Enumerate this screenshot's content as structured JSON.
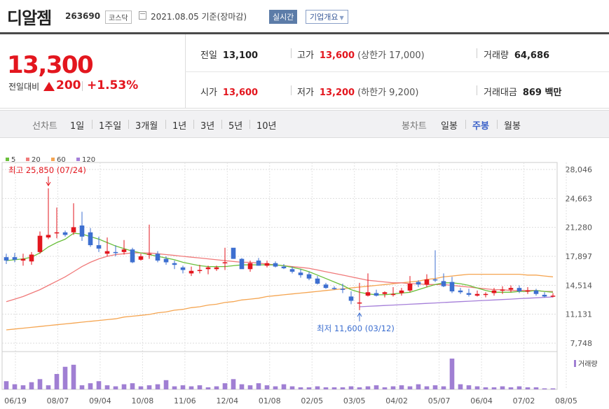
{
  "header": {
    "name": "디알젬",
    "code": "263690",
    "market": "코스닥",
    "date": "2021.08.05 기준(장마감)",
    "realtime_label": "실시간",
    "company_label": "기업개요"
  },
  "price": {
    "current": "13,300",
    "change_label": "전일대비",
    "change_value": "200",
    "change_pct": "+1.53%",
    "prev_label": "전일",
    "prev": "13,100",
    "high_label": "고가",
    "high": "13,600",
    "upper_limit": "(상한가 17,000)",
    "volume_label": "거래량",
    "volume": "64,686",
    "open_label": "시가",
    "open": "13,600",
    "low_label": "저가",
    "low": "13,200",
    "lower_limit": "(하한가 9,200)",
    "amount_label": "거래대금",
    "amount": "869 백만"
  },
  "tabs": {
    "line_label": "선차트",
    "periods": [
      "1일",
      "1주일",
      "3개월",
      "1년",
      "3년",
      "5년",
      "10년"
    ],
    "candle_label": "봉차트",
    "candles": [
      "일봉",
      "주봉",
      "월봉"
    ],
    "active_candle": "주봉"
  },
  "colors": {
    "up": "#e3161e",
    "down": "#3d6fd0",
    "ma5": "#6abf3a",
    "ma20": "#f07a7a",
    "ma60": "#f5a551",
    "ma120": "#a57fd9"
  },
  "chart_data": {
    "type": "candlestick",
    "legend": [
      {
        "name": "5",
        "color": "#6abf3a"
      },
      {
        "name": "20",
        "color": "#f07a7a"
      },
      {
        "name": "60",
        "color": "#f5a551"
      },
      {
        "name": "120",
        "color": "#a57fd9"
      }
    ],
    "y_ticks": [
      "28,046",
      "24,663",
      "21,280",
      "17,897",
      "14,514",
      "11,131",
      "7,748"
    ],
    "ylim": [
      7748,
      28046
    ],
    "x_ticks": [
      "06/19",
      "08/07",
      "09/04",
      "10/08",
      "11/06",
      "12/04",
      "01/08",
      "02/05",
      "03/05",
      "04/02",
      "05/07",
      "06/04",
      "07/02",
      "08/05"
    ],
    "annotation_high": "최고 25,850 (07/24)",
    "annotation_low": "최저 11,600 (03/12)",
    "volume_label": "거래량",
    "candles": [
      [
        17800,
        18200,
        17000,
        17400
      ],
      [
        17800,
        18300,
        17200,
        17500
      ],
      [
        17400,
        18200,
        16800,
        17600
      ],
      [
        17300,
        18400,
        16900,
        18100
      ],
      [
        18400,
        20800,
        18200,
        20300
      ],
      [
        20100,
        25850,
        19900,
        20400
      ],
      [
        20600,
        23600,
        20000,
        20700
      ],
      [
        20700,
        20900,
        20200,
        20400
      ],
      [
        20700,
        24100,
        20400,
        21300
      ],
      [
        21500,
        23100,
        19700,
        20200
      ],
      [
        20700,
        21200,
        19000,
        19200
      ],
      [
        19200,
        20200,
        18400,
        18800
      ],
      [
        18200,
        20100,
        17900,
        18500
      ],
      [
        18400,
        19200,
        17900,
        18300
      ],
      [
        18400,
        19800,
        18100,
        18700
      ],
      [
        18700,
        18900,
        17100,
        17200
      ],
      [
        17500,
        18200,
        17400,
        17900
      ],
      [
        18100,
        21600,
        17600,
        18200
      ],
      [
        18200,
        18500,
        17200,
        17400
      ],
      [
        17600,
        17900,
        16900,
        17200
      ],
      [
        17100,
        17400,
        16400,
        16900
      ],
      [
        16600,
        16800,
        15900,
        16300
      ],
      [
        15900,
        16700,
        15600,
        16200
      ],
      [
        16200,
        16900,
        15900,
        16300
      ],
      [
        16400,
        16800,
        15800,
        16600
      ],
      [
        16400,
        16800,
        16200,
        16600
      ],
      [
        17100,
        18900,
        16300,
        17200
      ],
      [
        18900,
        18800,
        17600,
        17600
      ],
      [
        17600,
        17700,
        16500,
        16400
      ],
      [
        16400,
        17400,
        16100,
        17100
      ],
      [
        17400,
        17700,
        16800,
        16800
      ],
      [
        16800,
        17400,
        16600,
        17100
      ],
      [
        17100,
        17300,
        16600,
        16700
      ],
      [
        16700,
        17000,
        16400,
        16500
      ],
      [
        16400,
        16700,
        15900,
        16100
      ],
      [
        16000,
        16400,
        15400,
        15700
      ],
      [
        15800,
        16100,
        15100,
        15300
      ],
      [
        15300,
        15600,
        14600,
        14700
      ],
      [
        14600,
        14800,
        14100,
        14200
      ],
      [
        14200,
        14400,
        14000,
        14100
      ],
      [
        14100,
        14700,
        13600,
        14000
      ],
      [
        13200,
        13800,
        12300,
        12700
      ],
      [
        12400,
        14800,
        11600,
        12500
      ],
      [
        13300,
        15900,
        13200,
        13700
      ],
      [
        13600,
        14000,
        13200,
        13300
      ],
      [
        13500,
        13800,
        13100,
        13700
      ],
      [
        13400,
        14300,
        13200,
        13500
      ],
      [
        13600,
        14200,
        13300,
        13900
      ],
      [
        13900,
        15600,
        13700,
        14700
      ],
      [
        14900,
        15100,
        14300,
        14600
      ],
      [
        14600,
        15800,
        14300,
        15200
      ],
      [
        15200,
        18600,
        14900,
        15100
      ],
      [
        15000,
        15900,
        14300,
        14400
      ],
      [
        14900,
        15500,
        13600,
        13800
      ],
      [
        13900,
        14200,
        13500,
        13700
      ],
      [
        13600,
        14100,
        13200,
        13400
      ],
      [
        13300,
        13900,
        13200,
        13500
      ],
      [
        13500,
        13700,
        13100,
        13500
      ],
      [
        13600,
        14200,
        13300,
        13900
      ],
      [
        13900,
        14400,
        13500,
        14000
      ],
      [
        14000,
        14500,
        13700,
        14200
      ],
      [
        14200,
        14500,
        13600,
        13800
      ],
      [
        13800,
        14300,
        13500,
        13900
      ],
      [
        13900,
        14100,
        13300,
        13500
      ],
      [
        13400,
        13700,
        13100,
        13200
      ],
      [
        13300,
        13600,
        13100,
        13300
      ]
    ],
    "ma5": [
      17400,
      17500,
      17600,
      17800,
      18300,
      19000,
      19500,
      19900,
      20600,
      20500,
      20200,
      19900,
      19500,
      19100,
      18800,
      18500,
      18300,
      18100,
      17900,
      17700,
      17500,
      17200,
      17000,
      16800,
      16700,
      16700,
      16700,
      16800,
      16900,
      16900,
      16900,
      16900,
      16900,
      16800,
      16600,
      16400,
      16100,
      15700,
      15300,
      14900,
      14500,
      14000,
      13700,
      13500,
      13400,
      13400,
      13500,
      13600,
      13700,
      14000,
      14300,
      14600,
      14800,
      14800,
      14700,
      14500,
      14200,
      13900,
      13700,
      13700,
      13700,
      13800,
      13800,
      13900,
      13800,
      13700
    ],
    "ma20": [
      12600,
      12900,
      13200,
      13600,
      14000,
      14500,
      15000,
      15500,
      16100,
      16700,
      17200,
      17600,
      17900,
      18100,
      18200,
      18300,
      18300,
      18300,
      18200,
      18100,
      18000,
      17900,
      17800,
      17700,
      17600,
      17500,
      17400,
      17300,
      17200,
      17200,
      17100,
      17000,
      16900,
      16800,
      16700,
      16600,
      16500,
      16300,
      16100,
      15900,
      15700,
      15500,
      15300,
      15100,
      15000,
      14900,
      14800,
      14800,
      14700,
      14700,
      14600,
      14600,
      14600,
      14500,
      14400,
      14300,
      14200,
      14100,
      14000,
      14000,
      13900,
      13900,
      13900,
      13900,
      13800,
      13800
    ],
    "ma60": [
      9300,
      9400,
      9500,
      9600,
      9700,
      9800,
      9900,
      10000,
      10100,
      10200,
      10300,
      10400,
      10500,
      10600,
      10800,
      10900,
      11000,
      11100,
      11300,
      11400,
      11600,
      11700,
      11900,
      12000,
      12200,
      12300,
      12500,
      12600,
      12800,
      12900,
      13000,
      13200,
      13300,
      13400,
      13500,
      13600,
      13700,
      13800,
      13900,
      14000,
      14100,
      14200,
      14300,
      14400,
      14500,
      14600,
      14700,
      14800,
      14900,
      15000,
      15200,
      15300,
      15500,
      15600,
      15700,
      15800,
      15800,
      15800,
      15800,
      15800,
      15800,
      15800,
      15700,
      15700,
      15600,
      15500
    ],
    "ma120_start_index": 42,
    "ma120": [
      12000,
      12050,
      12100,
      12150,
      12200,
      12250,
      12300,
      12350,
      12400,
      12450,
      12500,
      12550,
      12600,
      12650,
      12700,
      12750,
      12800,
      12850,
      12900,
      12950,
      13000,
      13050,
      13100,
      13150
    ],
    "volumes": [
      8,
      5,
      4,
      7,
      10,
      4,
      15,
      22,
      24,
      4,
      6,
      8,
      4,
      3,
      5,
      6,
      3,
      4,
      5,
      9,
      3,
      4,
      3,
      4,
      2,
      3,
      6,
      10,
      5,
      4,
      6,
      4,
      3,
      5,
      3,
      2,
      2,
      3,
      2,
      2,
      2,
      3,
      2,
      3,
      4,
      2,
      3,
      4,
      3,
      5,
      3,
      4,
      3,
      30,
      5,
      4,
      3,
      2,
      2,
      3,
      2,
      3,
      2,
      2,
      1,
      1
    ]
  }
}
